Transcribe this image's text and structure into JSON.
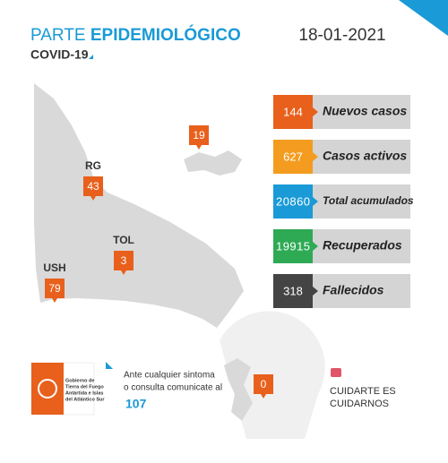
{
  "header": {
    "title_light": "PARTE",
    "title_bold": "EPIDEMIOLÓGICO",
    "subtitle": "COVID-19",
    "date": "18-01-2021"
  },
  "map": {
    "markers": [
      {
        "value": 19
      },
      {
        "label": "RG",
        "value": 43
      },
      {
        "label": "TOL",
        "value": 3
      },
      {
        "label": "USH",
        "value": 79
      },
      {
        "value": 0
      }
    ]
  },
  "stats": [
    {
      "value": 144,
      "label": "Nuevos casos",
      "color": "#e8601c"
    },
    {
      "value": 627,
      "label": "Casos activos",
      "color": "#f39c1f"
    },
    {
      "value": 20860,
      "label": "Total acumulados",
      "color": "#1a9ad6"
    },
    {
      "value": 19915,
      "label": "Recuperados",
      "color": "#2eaa55"
    },
    {
      "value": 318,
      "label": "Fallecidos",
      "color": "#444444"
    }
  ],
  "footer": {
    "logo_lines": [
      "Gobierno de",
      "Tierra del Fuego",
      "Antártida e Islas",
      "del Atlántico Sur"
    ],
    "contact_lines": [
      "Ante cualquier sintoma",
      "o consulta comunicate al"
    ],
    "phone": "107",
    "slogan": [
      "CUIDARTE ES",
      "CUIDARNOS"
    ]
  }
}
